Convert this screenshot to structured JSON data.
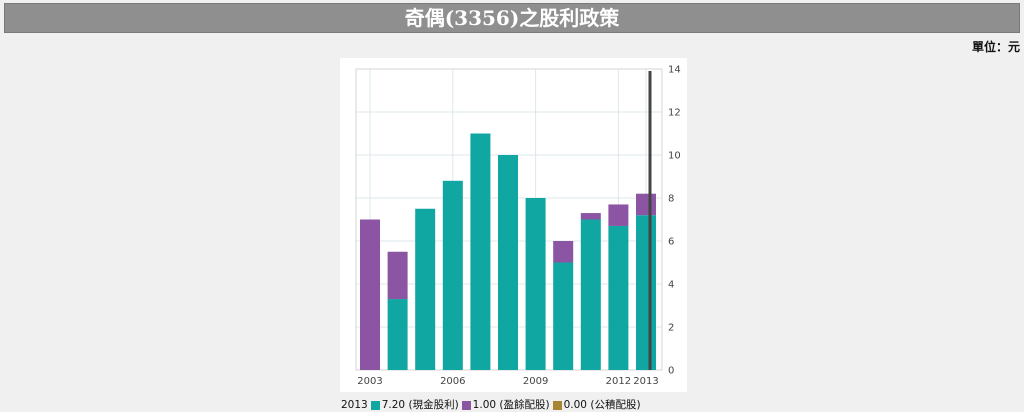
{
  "page": {
    "title": "奇偶(3356)之股利政策",
    "unit": "單位：元"
  },
  "legend": {
    "year": "2013",
    "items": [
      {
        "value": "7.20",
        "label": "(現金股利)",
        "color": "#10a7a3"
      },
      {
        "value": "1.00",
        "label": "(盈餘配股)",
        "color": "#8b55a3"
      },
      {
        "value": "0.00",
        "label": "(公積配股)",
        "color": "#a88530"
      }
    ]
  },
  "chart_data": {
    "type": "bar",
    "stacked": true,
    "categories": [
      "2003",
      "2004",
      "2005",
      "2006",
      "2007",
      "2008",
      "2009",
      "2010",
      "2011",
      "2012",
      "2013"
    ],
    "x_tick_labels": [
      {
        "label": "2003",
        "index": 0
      },
      {
        "label": "2006",
        "index": 3
      },
      {
        "label": "2009",
        "index": 6
      },
      {
        "label": "2012",
        "index": 9
      },
      {
        "label": "2013",
        "index": 10
      }
    ],
    "series": [
      {
        "name": "現金股利",
        "color": "#10a7a3",
        "values": [
          0,
          3.3,
          7.5,
          8.8,
          11.0,
          10.0,
          8.0,
          5.0,
          7.0,
          6.7,
          7.2
        ]
      },
      {
        "name": "盈餘配股",
        "color": "#8b55a3",
        "values": [
          7.0,
          2.2,
          0,
          0,
          0,
          0,
          0,
          1.0,
          0.3,
          1.0,
          1.0
        ]
      },
      {
        "name": "公積配股",
        "color": "#a88530",
        "values": [
          0,
          0,
          0,
          0,
          0,
          0,
          0,
          0,
          0,
          0,
          0
        ]
      }
    ],
    "ylim": [
      0,
      14
    ],
    "y_ticks": [
      0,
      2,
      4,
      6,
      8,
      10,
      12,
      14
    ],
    "y_axis_position": "right",
    "grid": true,
    "highlight_category": "2013",
    "legend_placement": "bottom"
  }
}
